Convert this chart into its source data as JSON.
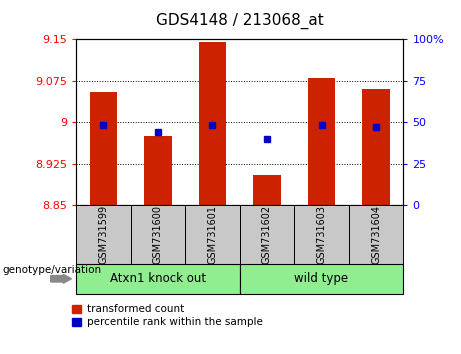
{
  "title": "GDS4148 / 213068_at",
  "samples": [
    "GSM731599",
    "GSM731600",
    "GSM731601",
    "GSM731602",
    "GSM731603",
    "GSM731604"
  ],
  "red_values": [
    9.055,
    8.975,
    9.145,
    8.905,
    9.08,
    9.06
  ],
  "blue_percentiles": [
    48,
    44,
    48,
    40,
    48,
    47
  ],
  "ylim_left": [
    8.85,
    9.15
  ],
  "ylim_right": [
    0,
    100
  ],
  "yticks_left": [
    8.85,
    8.925,
    9.0,
    9.075,
    9.15
  ],
  "yticks_right": [
    0,
    25,
    50,
    75,
    100
  ],
  "ytick_labels_left": [
    "8.85",
    "8.925",
    "9",
    "9.075",
    "9.15"
  ],
  "ytick_labels_right": [
    "0",
    "25",
    "50",
    "75",
    "100%"
  ],
  "grid_values": [
    8.925,
    9.0,
    9.075
  ],
  "groups": [
    {
      "label": "Atxn1 knock out",
      "start": 0,
      "end": 3,
      "color": "#90EE90"
    },
    {
      "label": "wild type",
      "start": 3,
      "end": 6,
      "color": "#90EE90"
    }
  ],
  "group_label_prefix": "genotype/variation",
  "bar_color": "#CC2200",
  "marker_color": "#0000CC",
  "bar_width": 0.5,
  "legend_red_label": "transformed count",
  "legend_blue_label": "percentile rank within the sample",
  "bg_color_xlabel": "#C8C8C8",
  "bg_color_group": "#90EE90"
}
